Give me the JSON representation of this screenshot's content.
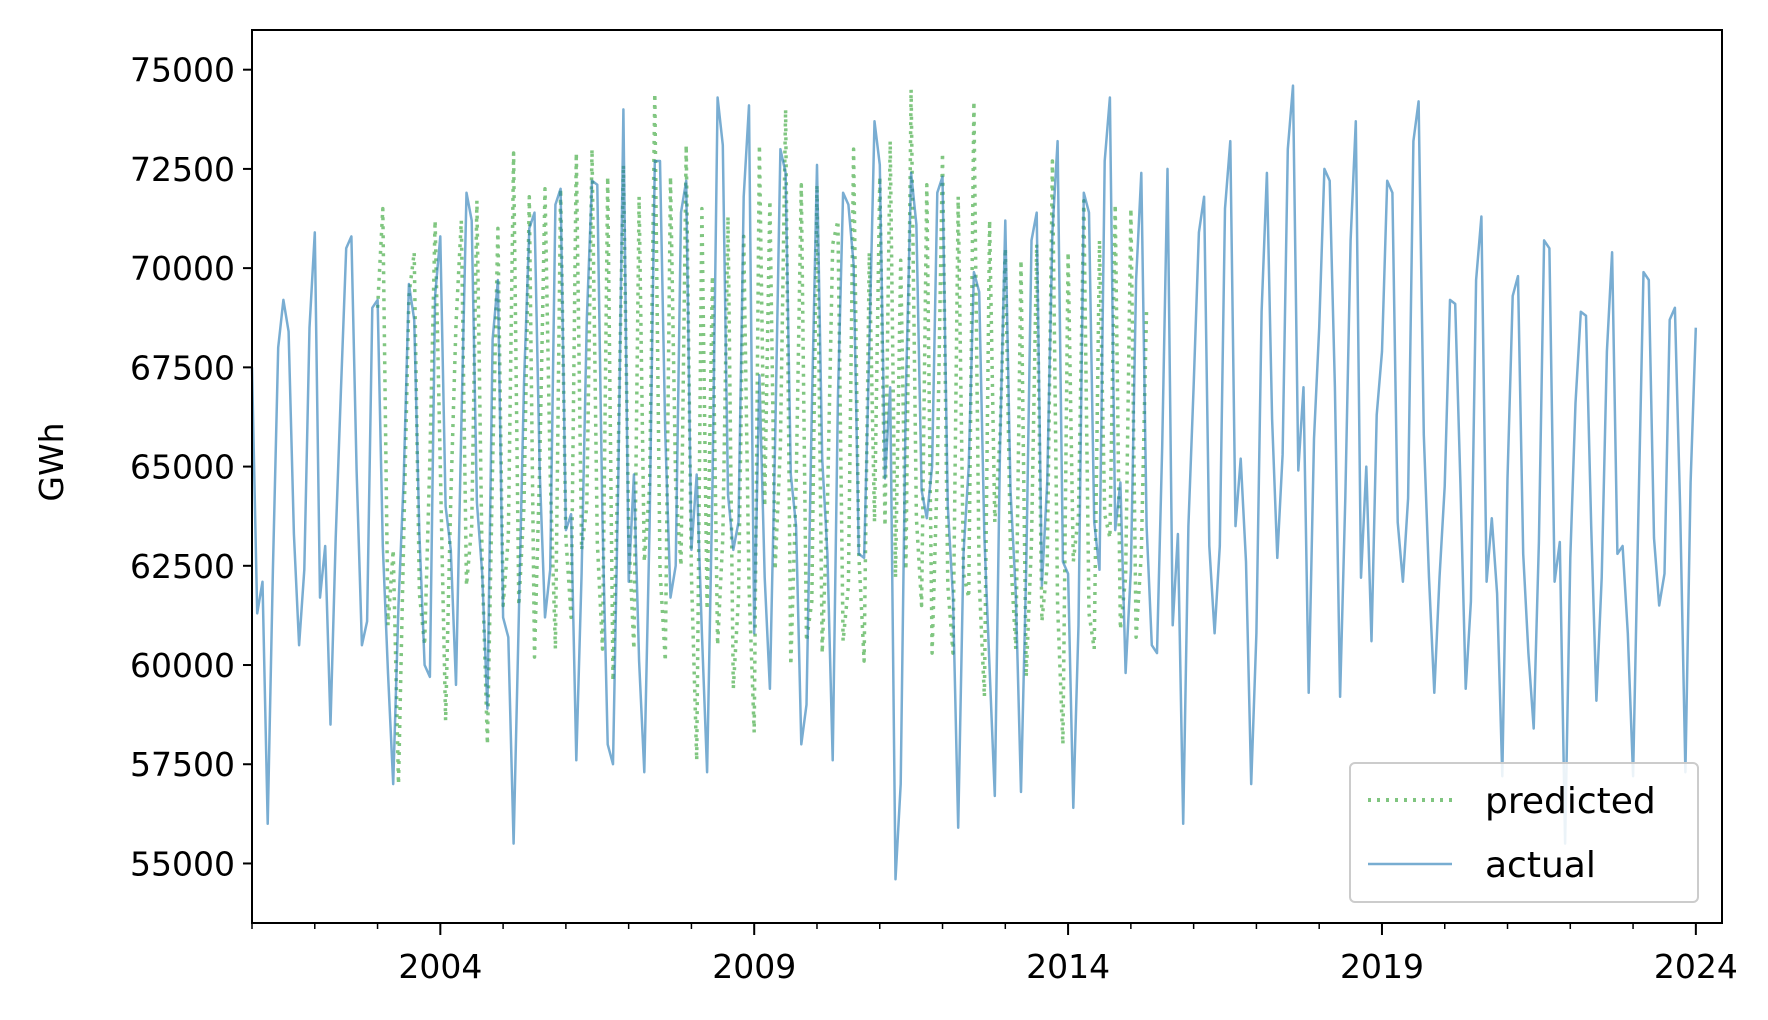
{
  "chart_data": {
    "type": "line",
    "title": "",
    "xlabel": "",
    "ylabel": "GWh",
    "xlim": [
      "2001-01",
      "2024-06"
    ],
    "ylim": [
      53500,
      76000
    ],
    "x_ticks": [
      {
        "date": "2004-01",
        "label": "2004"
      },
      {
        "date": "2009-01",
        "label": "2009"
      },
      {
        "date": "2014-01",
        "label": "2014"
      },
      {
        "date": "2019-01",
        "label": "2019"
      },
      {
        "date": "2024-01",
        "label": "2024"
      }
    ],
    "y_ticks": [
      {
        "value": 55000,
        "label": "55000"
      },
      {
        "value": 57500,
        "label": "57500"
      },
      {
        "value": 60000,
        "label": "60000"
      },
      {
        "value": 62500,
        "label": "62500"
      },
      {
        "value": 65000,
        "label": "65000"
      },
      {
        "value": 67500,
        "label": "67500"
      },
      {
        "value": 70000,
        "label": "70000"
      },
      {
        "value": 72500,
        "label": "72500"
      },
      {
        "value": 75000,
        "label": "75000"
      }
    ],
    "grid": false,
    "legend_position": "lower-right",
    "series": [
      {
        "name": "predicted",
        "color": "#2ca02c",
        "style": "dotted",
        "start": "2003-01",
        "values": [
          69000,
          71500,
          61000,
          62900,
          57000,
          63200,
          69300,
          70400,
          61800,
          60500,
          65200,
          71200,
          65000,
          58600,
          64200,
          68600,
          71200,
          62000,
          63500,
          71700,
          62500,
          58000,
          65000,
          71000,
          61500,
          63200,
          72900,
          61500,
          64000,
          71800,
          60200,
          65000,
          72000,
          64800,
          60400,
          72000,
          63200,
          61200,
          72900,
          62900,
          64000,
          73000,
          63100,
          60400,
          72300,
          59600,
          65300,
          72600,
          63300,
          60400,
          71800,
          62600,
          64500,
          74400,
          62400,
          60100,
          72300,
          64500,
          62500,
          73100,
          62300,
          57600,
          71500,
          61400,
          69800,
          60500,
          63200,
          71300,
          59400,
          61700,
          70800,
          62000,
          58300,
          73100,
          64000,
          71700,
          62400,
          65500,
          74000,
          60000,
          64500,
          72100,
          60600,
          61600,
          72100,
          60300,
          64000,
          70600,
          71200,
          60600,
          62000,
          73000,
          62800,
          60100,
          70400,
          63600,
          72300,
          63500,
          73200,
          62200,
          70200,
          62400,
          74500,
          63700,
          61500,
          72100,
          60300,
          64900,
          72900,
          62000,
          60300,
          71800,
          62300,
          61700,
          74200,
          62100,
          59200,
          71200,
          63600,
          65800,
          70500,
          62800,
          60400,
          70200,
          59700,
          63100,
          70600,
          61100,
          62500,
          72700,
          61500,
          58000,
          70400,
          62600,
          63800,
          71700,
          61300,
          60400,
          70700,
          63800,
          63200,
          71600,
          60900,
          62200,
          71500,
          60700,
          62800,
          69000
        ]
      },
      {
        "name": "actual",
        "color": "#1f77b4",
        "style": "solid",
        "start": "2001-01",
        "values": [
          67500,
          61300,
          62100,
          56000,
          62400,
          68000,
          69200,
          68400,
          63300,
          60500,
          62400,
          68500,
          70900,
          61700,
          63000,
          58500,
          63200,
          66900,
          70500,
          70800,
          64900,
          60500,
          61100,
          69000,
          69200,
          63000,
          59800,
          57000,
          61500,
          64700,
          69600,
          68700,
          63300,
          60000,
          59700,
          69300,
          70800,
          64000,
          62900,
          59500,
          66000,
          71900,
          71200,
          64100,
          62300,
          58900,
          68200,
          69700,
          61200,
          60700,
          55500,
          61200,
          67100,
          71000,
          71400,
          64900,
          61200,
          62400,
          71600,
          72000,
          63400,
          63800,
          57600,
          62300,
          68700,
          72200,
          72100,
          63600,
          58000,
          57500,
          64500,
          74000,
          62100,
          64800,
          60100,
          57300,
          63500,
          72700,
          72700,
          65800,
          61700,
          62500,
          71400,
          72200,
          62900,
          64800,
          60800,
          57300,
          64400,
          74300,
          73100,
          64300,
          62900,
          63600,
          71800,
          74100,
          60800,
          67300,
          62200,
          59400,
          65600,
          73000,
          72400,
          64800,
          63500,
          58000,
          59000,
          66400,
          72600,
          65200,
          62800,
          57600,
          66700,
          71900,
          71600,
          70100,
          62800,
          62700,
          68000,
          73700,
          72600,
          64700,
          67000,
          54600,
          57000,
          66900,
          72400,
          71100,
          64400,
          63700,
          65000,
          71900,
          72300,
          64000,
          61700,
          55900,
          62800,
          65000,
          69900,
          69400,
          63200,
          59900,
          56700,
          65600,
          71200,
          64400,
          61800,
          56800,
          62400,
          70700,
          71400,
          62000,
          64600,
          70900,
          73200,
          62600,
          62300,
          56400,
          61000,
          71900,
          71400,
          63600,
          62400,
          72700,
          74300,
          63400,
          64600,
          59800,
          62400,
          69700,
          72400,
          63500,
          60500,
          60300,
          65500,
          72500,
          61000,
          63300,
          56000,
          63500,
          67000,
          70900,
          71800,
          63000,
          60800,
          63000,
          71500,
          73200,
          63500,
          65200,
          62600,
          57000,
          60800,
          68900,
          72400,
          66200,
          62700,
          65300,
          73000,
          74600,
          64900,
          67000,
          59300,
          65700,
          68500,
          72500,
          72200,
          67000,
          59200,
          64200,
          70700,
          73700,
          62200,
          65000,
          60600,
          66300,
          67900,
          72200,
          71900,
          63600,
          62100,
          64200,
          73200,
          74200,
          65800,
          62200,
          59300,
          62200,
          64500,
          69200,
          69100,
          64600,
          59400,
          61600,
          69700,
          71300,
          62100,
          63700,
          61800,
          57200,
          64700,
          69300,
          69800,
          62800,
          60300,
          58400,
          63100,
          70700,
          70500,
          62100,
          63100,
          55500,
          62700,
          66600,
          68900,
          68800,
          63500,
          59100,
          62200,
          67900,
          70400,
          62800,
          63000,
          60800,
          57200,
          63700,
          69900,
          69700,
          63200,
          61500,
          62300,
          68700,
          69000,
          64000,
          57300,
          64600,
          68500
        ]
      }
    ]
  },
  "legend": {
    "items": [
      {
        "label": "predicted"
      },
      {
        "label": "actual"
      }
    ]
  }
}
